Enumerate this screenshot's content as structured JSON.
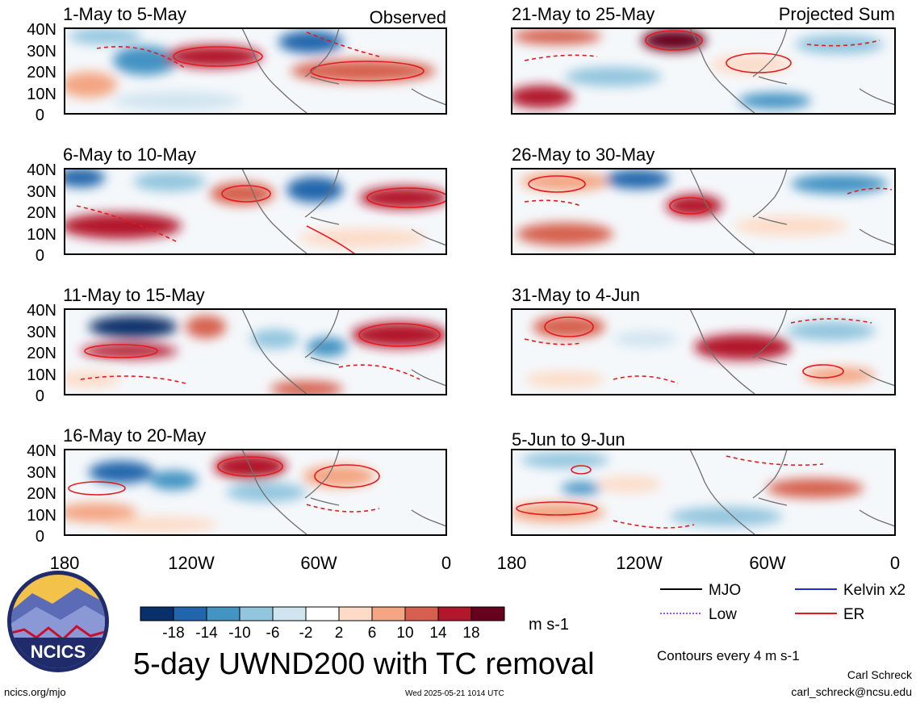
{
  "panels": [
    {
      "period": "1-May to 5-May",
      "tag": "Observed"
    },
    {
      "period": "6-May to 10-May",
      "tag": ""
    },
    {
      "period": "11-May to 15-May",
      "tag": ""
    },
    {
      "period": "16-May to 20-May",
      "tag": ""
    },
    {
      "period": "21-May to 25-May",
      "tag": "Projected Sum"
    },
    {
      "period": "26-May to 30-May",
      "tag": ""
    },
    {
      "period": "31-May to 4-Jun",
      "tag": ""
    },
    {
      "period": "5-Jun to 9-Jun",
      "tag": ""
    }
  ],
  "lat_ticks": [
    "40N",
    "30N",
    "20N",
    "10N",
    "0"
  ],
  "lon_ticks": [
    "180",
    "120W",
    "60W",
    "0"
  ],
  "colorbar": {
    "colors": [
      "#08306b",
      "#2166ac",
      "#4393c3",
      "#92c5de",
      "#d1e5f0",
      "#ffffff",
      "#fddbc7",
      "#f4a582",
      "#d6604d",
      "#b2182b",
      "#67001f"
    ],
    "labels": [
      "-18",
      "-14",
      "-10",
      "-6",
      "-2",
      "2",
      "6",
      "10",
      "14",
      "18"
    ],
    "units": "m s-1"
  },
  "legend": [
    {
      "label": "MJO",
      "color": "#000000",
      "style": "solid"
    },
    {
      "label": "Kelvin x2",
      "color": "#1f2fd6",
      "style": "solid"
    },
    {
      "label": "Low",
      "color": "#a64dff",
      "style": "dotted"
    },
    {
      "label": "ER",
      "color": "#e41a1c",
      "style": "solid"
    }
  ],
  "contour_note": "Contours every 4 m s-1",
  "title": "5-day UWND200 with TC removal",
  "logo_text": "NCICS",
  "footer": {
    "url": "ncics.org/mjo",
    "timestamp": "Wed 2025-05-21 1014 UTC",
    "author": "Carl Schreck",
    "email": "carl_schreck@ncsu.edu"
  }
}
